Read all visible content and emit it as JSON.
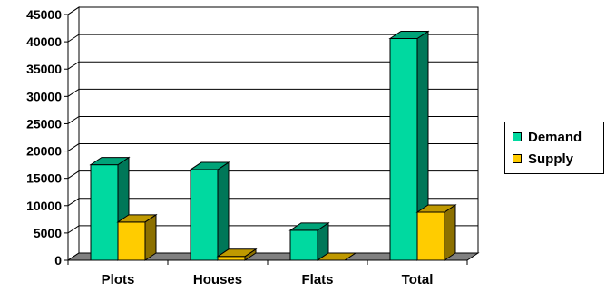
{
  "chart_data": {
    "type": "bar",
    "title": "",
    "xlabel": "",
    "ylabel": "",
    "categories": [
      "Plots",
      "Houses",
      "Flats",
      "Total"
    ],
    "series": [
      {
        "name": "Demand",
        "values": [
          17500,
          16600,
          5500,
          40600
        ],
        "color": "#00D9A0"
      },
      {
        "name": "Supply",
        "values": [
          7000,
          700,
          0,
          8800
        ],
        "color": "#FFCC00"
      }
    ],
    "ylim": [
      0,
      45000
    ],
    "yticks": [
      0,
      5000,
      10000,
      15000,
      20000,
      25000,
      30000,
      35000,
      40000,
      45000
    ],
    "grid": true,
    "style": "3d",
    "legend_position": "right",
    "floor_color": "#808080"
  }
}
